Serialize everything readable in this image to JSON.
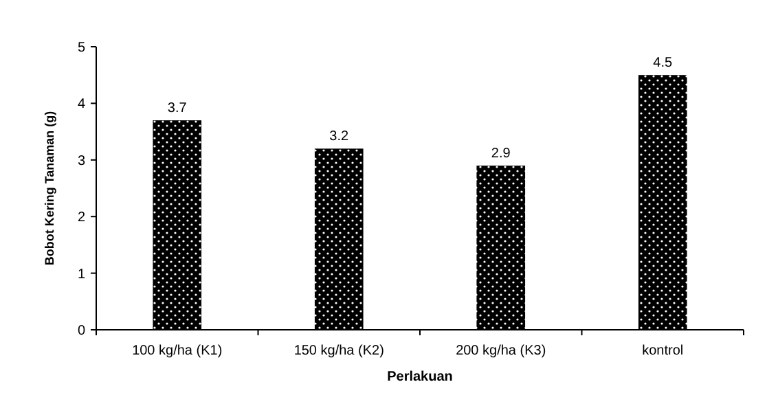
{
  "chart_data": {
    "type": "bar",
    "xlabel": "Perlakuan",
    "ylabel": "Bobot Kering Tanaman (g)",
    "categories": [
      "100 kg/ha (K1)",
      "150 kg/ha (K2)",
      "200 kg/ha (K3)",
      "kontrol"
    ],
    "values": [
      3.7,
      3.2,
      2.9,
      4.5
    ],
    "color": "#000000",
    "ylim": [
      0,
      5
    ],
    "yticks": [
      0,
      1,
      2,
      3,
      4,
      5
    ],
    "data_labels": true
  }
}
